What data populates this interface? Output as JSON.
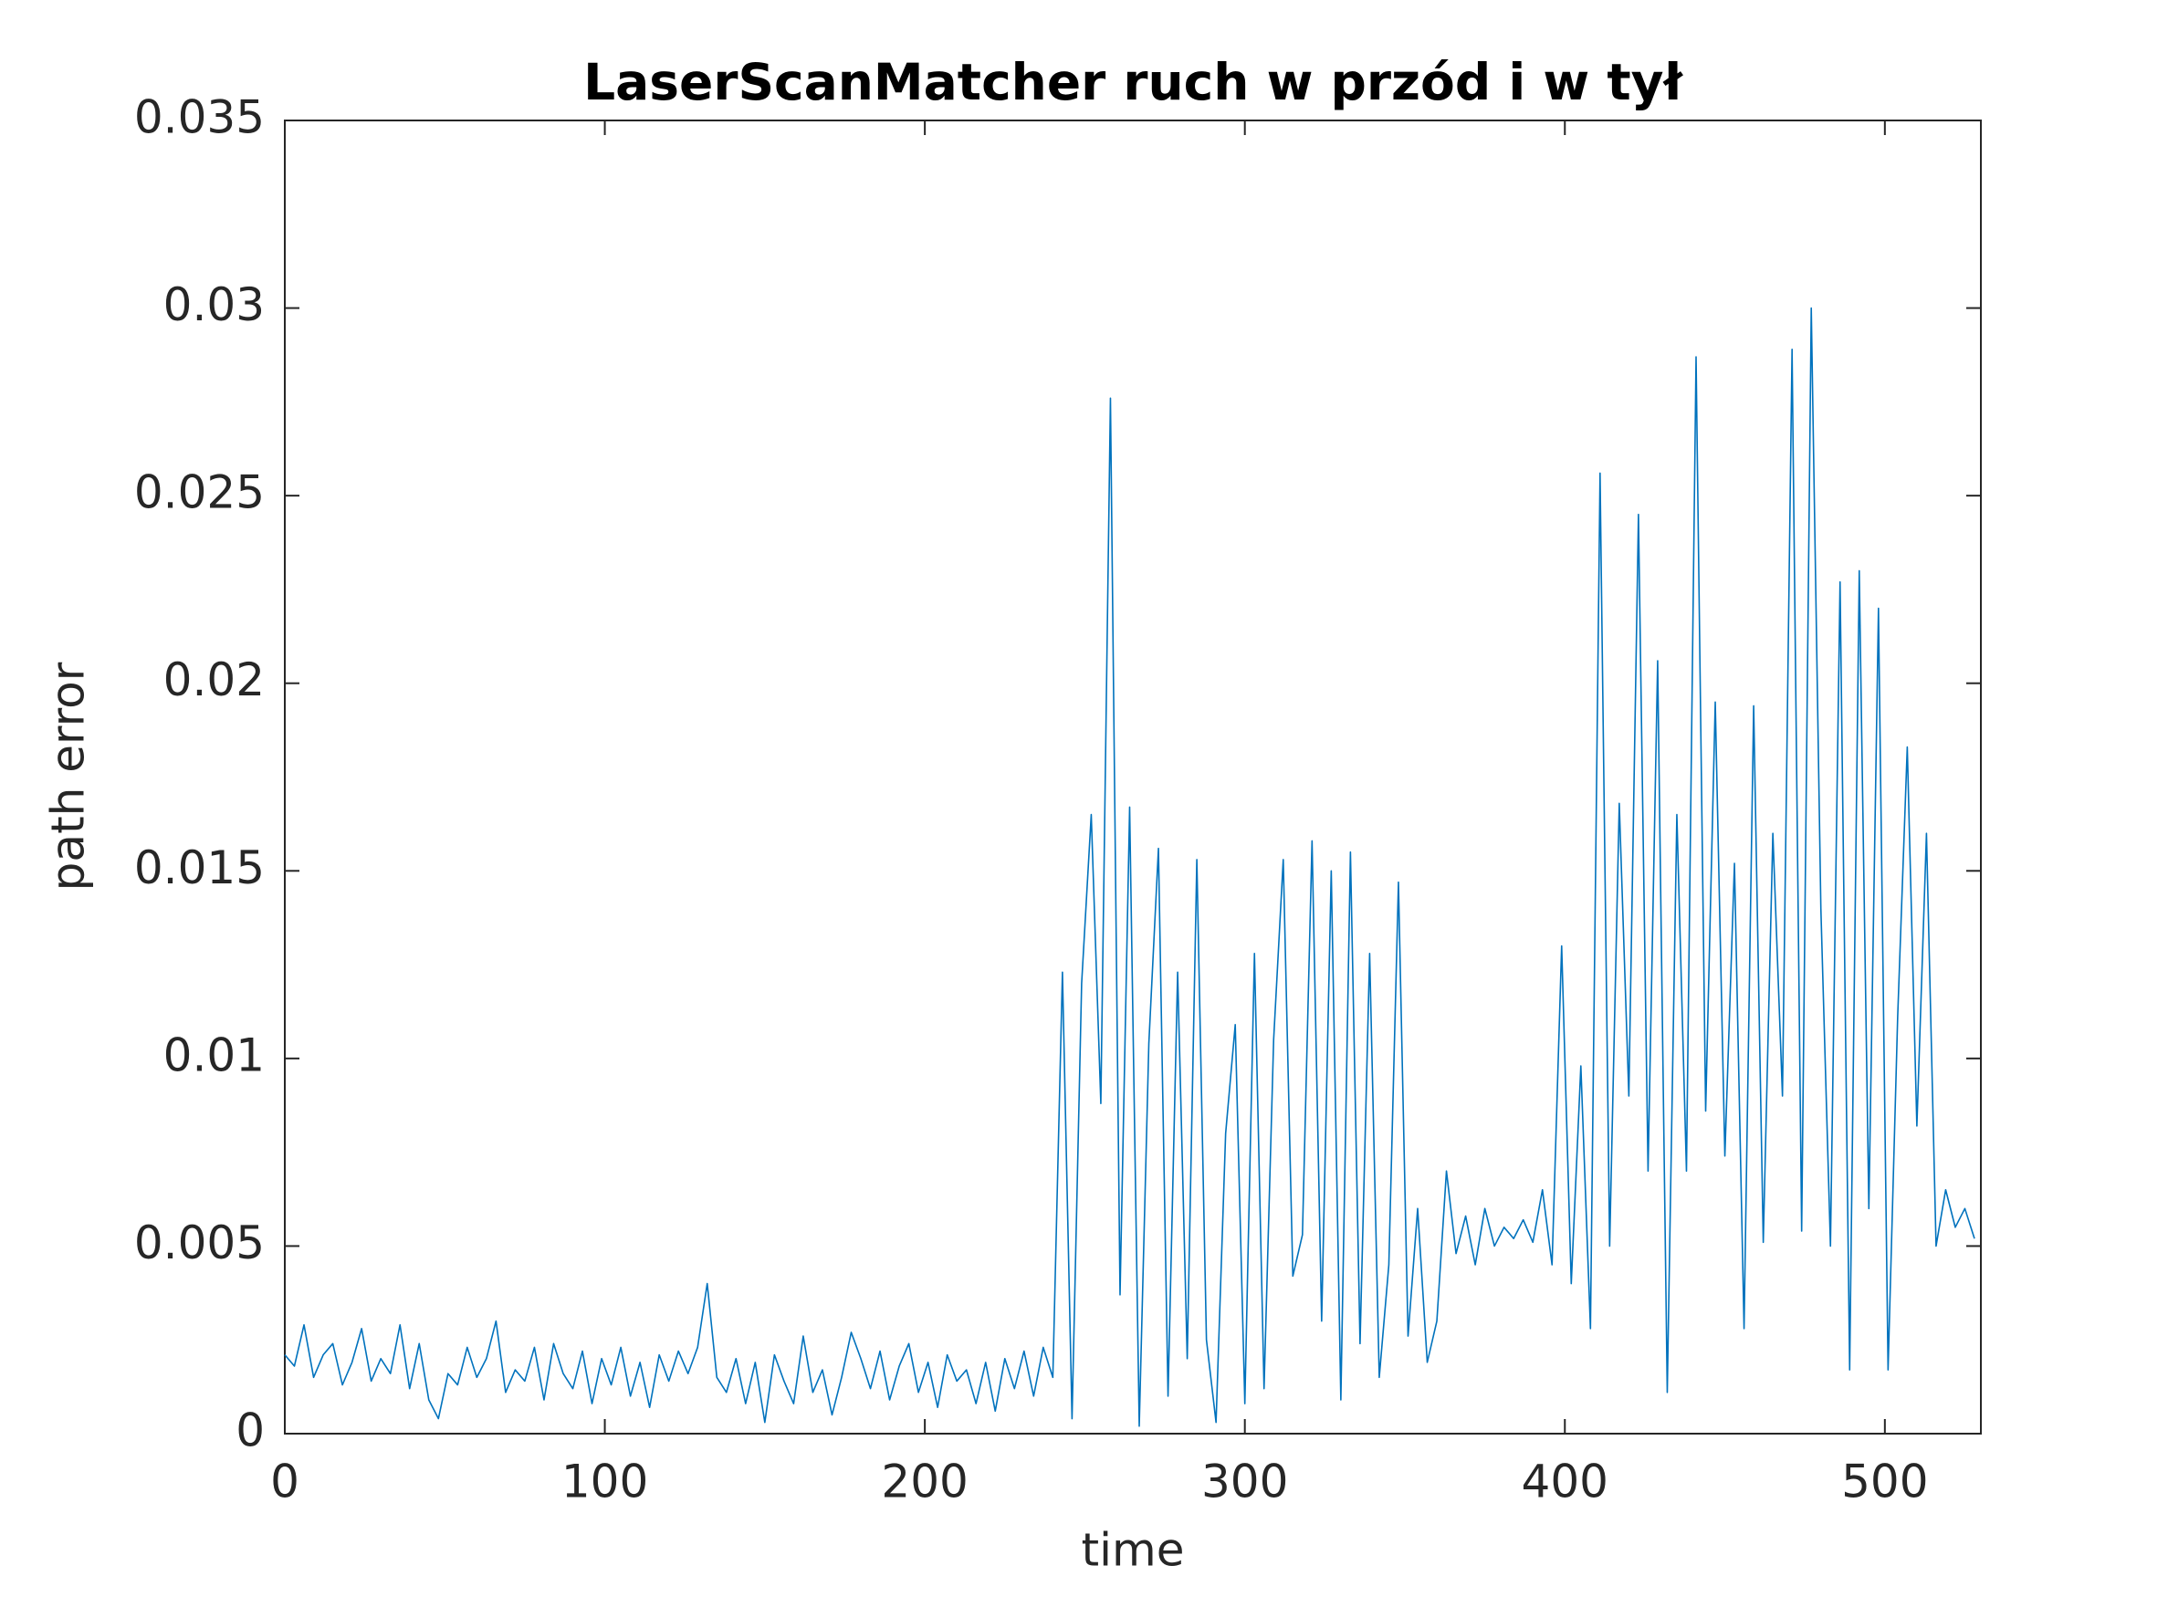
{
  "chart_data": {
    "type": "line",
    "title": "LaserScanMatcher ruch w przód i w tył",
    "xlabel": "time",
    "ylabel": "path error",
    "x": [
      0,
      3,
      6,
      9,
      12,
      15,
      18,
      21,
      24,
      27,
      30,
      33,
      36,
      39,
      42,
      45,
      48,
      51,
      54,
      57,
      60,
      63,
      66,
      69,
      72,
      75,
      78,
      81,
      84,
      87,
      90,
      93,
      96,
      99,
      102,
      105,
      108,
      111,
      114,
      117,
      120,
      123,
      126,
      129,
      132,
      135,
      138,
      141,
      144,
      147,
      150,
      153,
      156,
      159,
      162,
      165,
      168,
      171,
      174,
      177,
      180,
      183,
      186,
      189,
      192,
      195,
      198,
      201,
      204,
      207,
      210,
      213,
      216,
      219,
      222,
      225,
      228,
      231,
      234,
      237,
      240,
      243,
      246,
      249,
      252,
      255,
      258,
      261,
      264,
      267,
      270,
      273,
      276,
      279,
      282,
      285,
      288,
      291,
      294,
      297,
      300,
      303,
      306,
      309,
      312,
      315,
      318,
      321,
      324,
      327,
      330,
      333,
      336,
      339,
      342,
      345,
      348,
      351,
      354,
      357,
      360,
      363,
      366,
      369,
      372,
      375,
      378,
      381,
      384,
      387,
      390,
      393,
      396,
      399,
      402,
      405,
      408,
      411,
      414,
      417,
      420,
      423,
      426,
      429,
      432,
      435,
      438,
      441,
      444,
      447,
      450,
      453,
      456,
      459,
      462,
      465,
      468,
      471,
      474,
      477,
      480,
      483,
      486,
      489,
      492,
      495,
      498,
      501,
      504,
      507,
      510,
      513,
      516,
      519,
      522,
      525,
      528
    ],
    "series": [
      {
        "name": "path error",
        "color": "#0072bd",
        "values": [
          0.0021,
          0.0018,
          0.0029,
          0.0015,
          0.0021,
          0.0024,
          0.0013,
          0.0019,
          0.0028,
          0.0014,
          0.002,
          0.0016,
          0.0029,
          0.0012,
          0.0024,
          0.0009,
          0.0004,
          0.0016,
          0.0013,
          0.0023,
          0.0015,
          0.002,
          0.003,
          0.0011,
          0.0017,
          0.0014,
          0.0023,
          0.0009,
          0.0024,
          0.0016,
          0.0012,
          0.0022,
          0.0008,
          0.002,
          0.0013,
          0.0023,
          0.001,
          0.0019,
          0.0007,
          0.0021,
          0.0014,
          0.0022,
          0.0016,
          0.0023,
          0.004,
          0.0015,
          0.0011,
          0.002,
          0.0008,
          0.0019,
          0.0003,
          0.0021,
          0.0014,
          0.0008,
          0.0026,
          0.0011,
          0.0017,
          0.0005,
          0.0015,
          0.0027,
          0.002,
          0.0012,
          0.0022,
          0.0009,
          0.0018,
          0.0024,
          0.0011,
          0.0019,
          0.0007,
          0.0021,
          0.0014,
          0.0017,
          0.0008,
          0.0019,
          0.0006,
          0.002,
          0.0012,
          0.0022,
          0.001,
          0.0023,
          0.0015,
          0.0123,
          0.0004,
          0.012,
          0.0165,
          0.0088,
          0.0276,
          0.0037,
          0.0167,
          0.0002,
          0.0104,
          0.0156,
          0.001,
          0.0123,
          0.002,
          0.0153,
          0.0025,
          0.0003,
          0.008,
          0.0109,
          0.0008,
          0.0128,
          0.0012,
          0.0105,
          0.0153,
          0.0042,
          0.0053,
          0.0158,
          0.003,
          0.015,
          0.0009,
          0.0155,
          0.0024,
          0.0128,
          0.0015,
          0.0045,
          0.0147,
          0.0026,
          0.006,
          0.0019,
          0.003,
          0.007,
          0.0048,
          0.0058,
          0.0045,
          0.006,
          0.005,
          0.0055,
          0.0052,
          0.0057,
          0.0051,
          0.0065,
          0.0045,
          0.013,
          0.004,
          0.0098,
          0.0028,
          0.0256,
          0.005,
          0.0168,
          0.009,
          0.0245,
          0.007,
          0.0206,
          0.0011,
          0.0165,
          0.007,
          0.0287,
          0.0086,
          0.0195,
          0.0074,
          0.0152,
          0.0028,
          0.0194,
          0.0051,
          0.016,
          0.009,
          0.0289,
          0.0054,
          0.03,
          0.014,
          0.005,
          0.0227,
          0.0017,
          0.023,
          0.006,
          0.022,
          0.0017,
          0.0111,
          0.0183,
          0.0082,
          0.016,
          0.005,
          0.0065,
          0.0055,
          0.006,
          0.0052
        ]
      }
    ],
    "xlim": [
      0,
      530
    ],
    "ylim": [
      0,
      0.035
    ],
    "xticks": [
      0,
      100,
      200,
      300,
      400,
      500
    ],
    "yticks": [
      0,
      0.005,
      0.01,
      0.015,
      0.02,
      0.025,
      0.03,
      0.035
    ],
    "grid": false
  }
}
